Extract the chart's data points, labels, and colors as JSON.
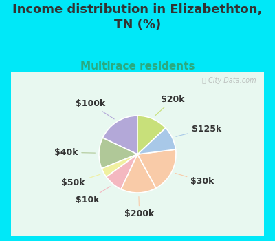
{
  "title": "Income distribution in Elizabethton,\nTN (%)",
  "subtitle": "Multirace residents",
  "watermark": "ⓘ City-Data.com",
  "labels": [
    "$100k",
    "$40k",
    "$50k",
    "$10k",
    "$200k",
    "$30k",
    "$125k",
    "$20k"
  ],
  "values": [
    18,
    13,
    4,
    8,
    15,
    19,
    10,
    13
  ],
  "colors": [
    "#b3a8d8",
    "#b0c898",
    "#f0f0a0",
    "#f4b8c0",
    "#f9cba8",
    "#f9cba8",
    "#a8c8e8",
    "#c8e07a"
  ],
  "background_page": "#00e8f8",
  "chart_bg_color": "#e8f8f0",
  "title_color": "#333333",
  "subtitle_color": "#2aaa80",
  "label_color": "#333333",
  "title_fontsize": 13,
  "subtitle_fontsize": 11,
  "label_fontsize": 9,
  "startangle": 90
}
